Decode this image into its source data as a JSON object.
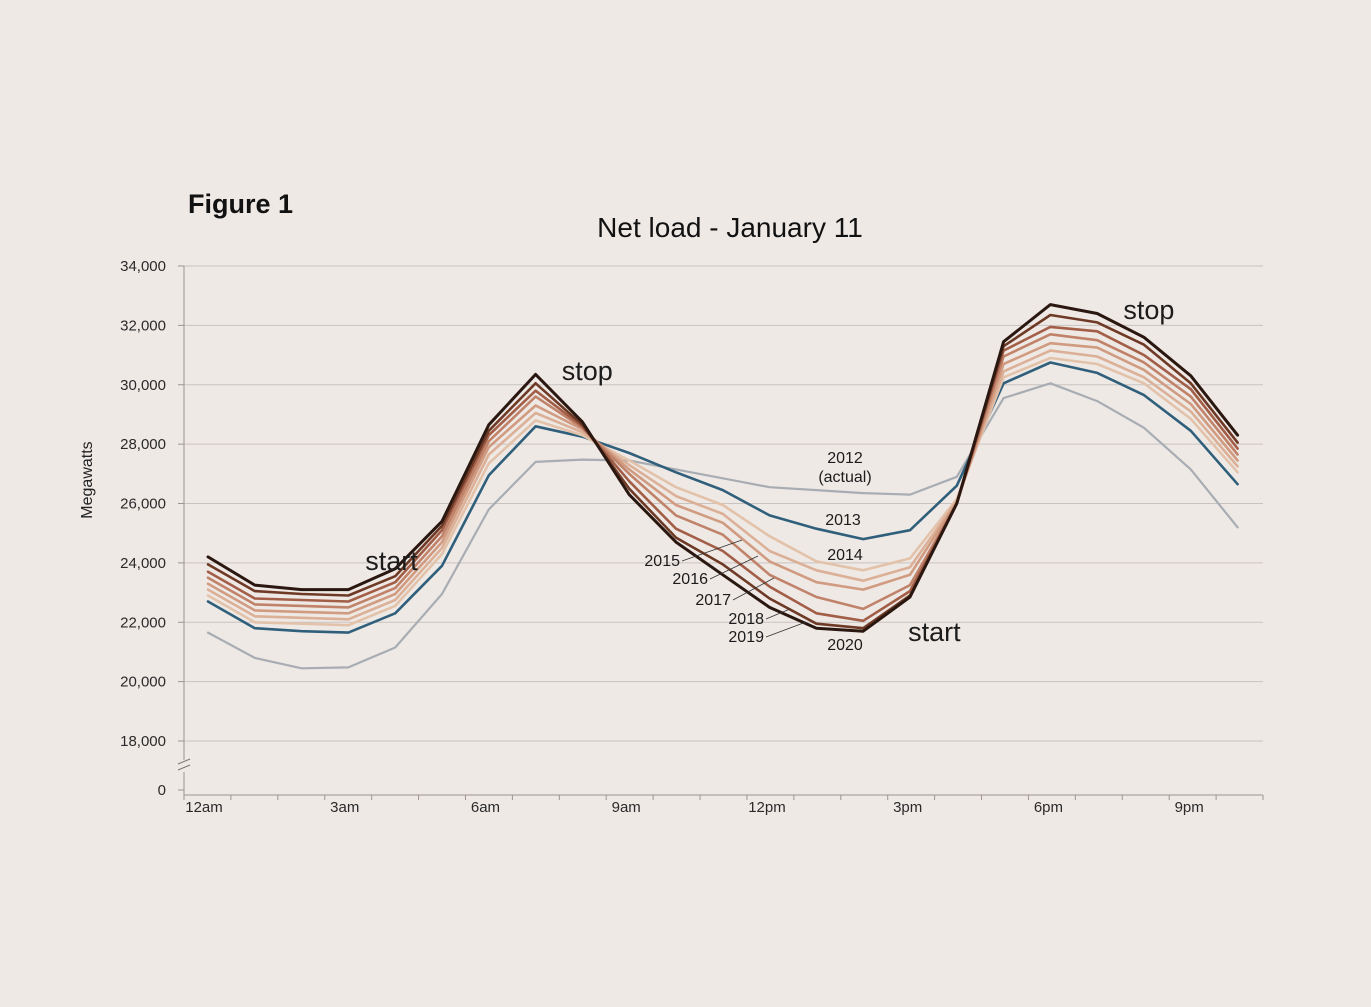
{
  "figure_label": "Figure 1",
  "chart_data": {
    "type": "line",
    "title": "Net load - January 11",
    "xlabel": "",
    "ylabel": "Megawatts",
    "ylim": [
      18000,
      34000
    ],
    "y_axis_break": true,
    "y_ticks": [
      {
        "value": 34000,
        "label": "34,000"
      },
      {
        "value": 32000,
        "label": "32,000"
      },
      {
        "value": 30000,
        "label": "30,000"
      },
      {
        "value": 28000,
        "label": "28,000"
      },
      {
        "value": 26000,
        "label": "26,000"
      },
      {
        "value": 24000,
        "label": "24,000"
      },
      {
        "value": 22000,
        "label": "22,000"
      },
      {
        "value": 20000,
        "label": "20,000"
      },
      {
        "value": 18000,
        "label": "18,000"
      },
      {
        "value": 0,
        "label": "0"
      }
    ],
    "x": [
      0,
      1,
      2,
      3,
      4,
      5,
      6,
      7,
      8,
      9,
      10,
      11,
      12,
      13,
      14,
      15,
      16,
      17,
      18,
      19,
      20,
      21,
      22
    ],
    "x_tick_labels": [
      {
        "x": 0,
        "label": "12am"
      },
      {
        "x": 3,
        "label": "3am"
      },
      {
        "x": 6,
        "label": "6am"
      },
      {
        "x": 9,
        "label": "9am"
      },
      {
        "x": 12,
        "label": "12pm"
      },
      {
        "x": 15,
        "label": "3pm"
      },
      {
        "x": 18,
        "label": "6pm"
      },
      {
        "x": 21,
        "label": "9pm"
      }
    ],
    "series": [
      {
        "name": "2012",
        "label": "2012",
        "label2": "(actual)",
        "color": "#a8adb3",
        "values": [
          21650,
          20800,
          20450,
          20480,
          21150,
          22950,
          25800,
          27400,
          27480,
          27450,
          27150,
          26850,
          26550,
          26450,
          26350,
          26300,
          26900,
          29550,
          30050,
          29450,
          28550,
          27150,
          25200
        ]
      },
      {
        "name": "2013",
        "label": "2013",
        "color": "#2f5f7a",
        "values": [
          22700,
          21800,
          21700,
          21650,
          22300,
          23900,
          26950,
          28600,
          28250,
          27700,
          27050,
          26450,
          25600,
          25150,
          24800,
          25100,
          26600,
          30050,
          30750,
          30400,
          29650,
          28450,
          26650
        ]
      },
      {
        "name": "2014",
        "label": "2014",
        "color": "#e3c2aa",
        "values": [
          22900,
          22000,
          21950,
          21900,
          22550,
          24300,
          27350,
          28800,
          28300,
          27450,
          26550,
          25950,
          24900,
          24050,
          23750,
          24150,
          26150,
          30250,
          30900,
          30700,
          30050,
          28850,
          27050
        ]
      },
      {
        "name": "2015",
        "label": "2015",
        "color": "#dbb097",
        "values": [
          23100,
          22200,
          22150,
          22100,
          22750,
          24500,
          27650,
          29050,
          28400,
          27300,
          26250,
          25650,
          24400,
          23750,
          23400,
          23850,
          26100,
          30450,
          31150,
          30950,
          30250,
          29100,
          27250
        ]
      },
      {
        "name": "2016",
        "label": "2016",
        "color": "#d09b80",
        "values": [
          23300,
          22400,
          22350,
          22300,
          22950,
          24700,
          27900,
          29300,
          28500,
          27150,
          25950,
          25350,
          24050,
          23350,
          23100,
          23600,
          26050,
          30700,
          31400,
          31250,
          30500,
          29350,
          27450
        ]
      },
      {
        "name": "2017",
        "label": "2017",
        "color": "#c0836a",
        "values": [
          23500,
          22600,
          22550,
          22500,
          23150,
          24900,
          28100,
          29600,
          28550,
          27000,
          25600,
          24950,
          23600,
          22850,
          22450,
          23250,
          26000,
          30950,
          31700,
          31500,
          30750,
          29600,
          27650
        ]
      },
      {
        "name": "2018",
        "label": "2018",
        "color": "#a25e47",
        "values": [
          23700,
          22800,
          22750,
          22700,
          23350,
          25100,
          28300,
          29800,
          28600,
          26750,
          25150,
          24400,
          23200,
          22300,
          22050,
          23050,
          26000,
          31150,
          31950,
          31800,
          31000,
          29850,
          27850
        ]
      },
      {
        "name": "2019",
        "label": "2019",
        "color": "#6e3a26",
        "values": [
          23950,
          23050,
          22950,
          22900,
          23550,
          25250,
          28450,
          30050,
          28650,
          26500,
          24850,
          23950,
          22800,
          21950,
          21800,
          22900,
          26000,
          31300,
          32350,
          32100,
          31350,
          30050,
          28050
        ]
      },
      {
        "name": "2020",
        "label": "2020",
        "color": "#2a1710",
        "values": [
          24200,
          23250,
          23100,
          23100,
          23800,
          25400,
          28650,
          30350,
          28750,
          26300,
          24700,
          23600,
          22500,
          21800,
          21700,
          22850,
          26000,
          31450,
          32700,
          32400,
          31600,
          30300,
          28300
        ]
      }
    ],
    "annotations": [
      {
        "text": "start",
        "x": 4.0,
        "y": 24100
      },
      {
        "text": "stop",
        "x": 8.2,
        "y": 30500
      },
      {
        "text": "start",
        "x": 15.6,
        "y": 21700
      },
      {
        "text": "stop",
        "x": 20.2,
        "y": 32550
      }
    ]
  }
}
